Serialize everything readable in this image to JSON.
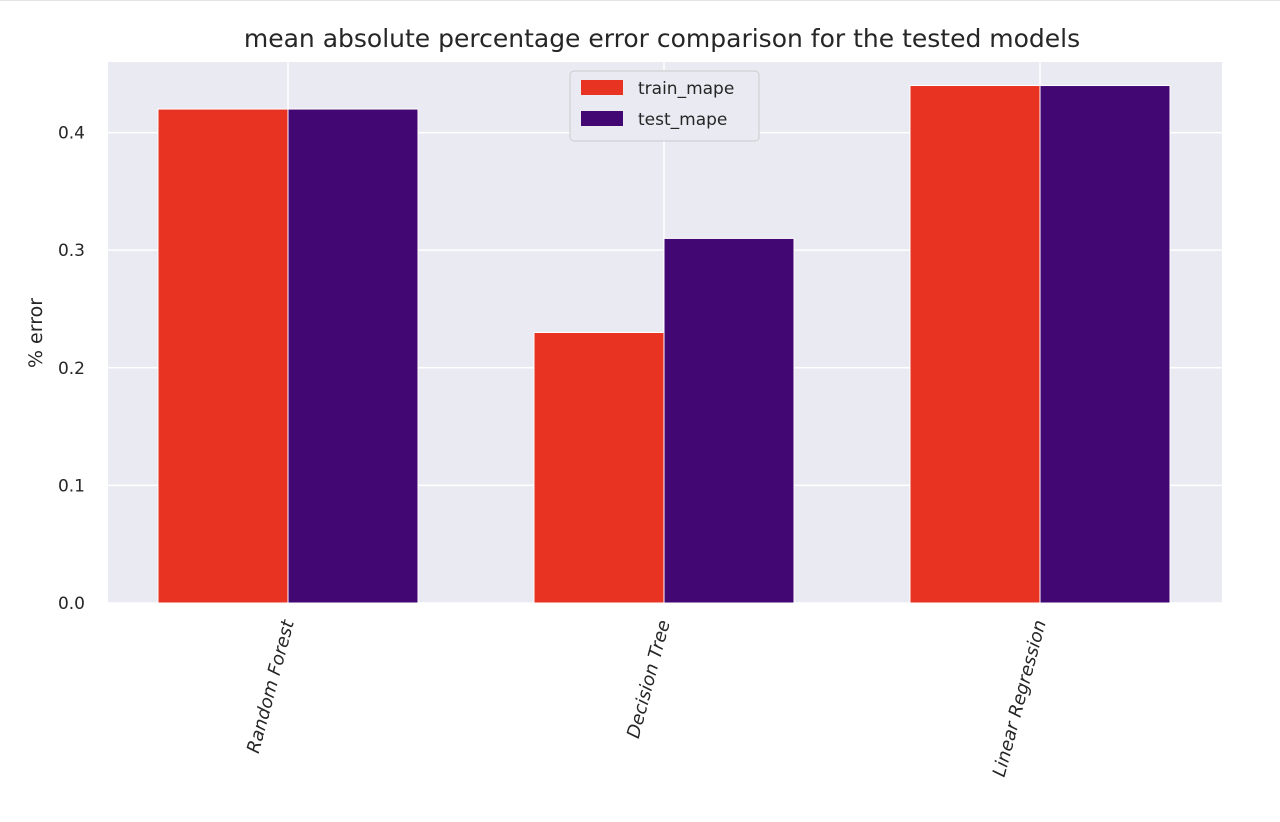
{
  "chart_data": {
    "type": "bar",
    "title": "mean absolute percentage error comparison for the tested models",
    "xlabel": "",
    "ylabel": "% error",
    "categories": [
      "Random Forest",
      "Decision Tree",
      "Linear Regression"
    ],
    "series": [
      {
        "name": "train_mape",
        "color": "#e83323",
        "values": [
          0.42,
          0.23,
          0.44
        ]
      },
      {
        "name": "test_mape",
        "color": "#430773",
        "values": [
          0.42,
          0.31,
          0.44
        ]
      }
    ],
    "ylim": [
      0,
      0.46
    ],
    "yticks": [
      {
        "value": 0.0,
        "label": "0.0"
      },
      {
        "value": 0.1,
        "label": "0.1"
      },
      {
        "value": 0.2,
        "label": "0.2"
      },
      {
        "value": 0.3,
        "label": "0.3"
      },
      {
        "value": 0.4,
        "label": "0.4"
      }
    ],
    "grid": true,
    "legend_position": "top-center",
    "plot_background": "#eaeaf2"
  }
}
